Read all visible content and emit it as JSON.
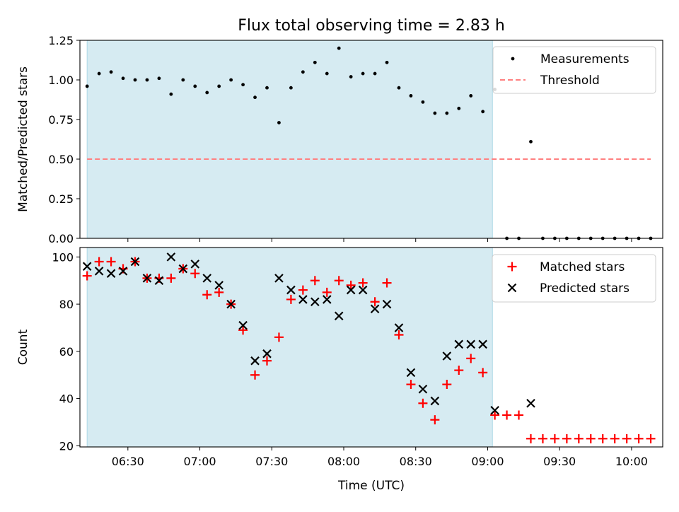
{
  "title": "Flux total observing time = 2.83 h",
  "xlabel": "Time (UTC)",
  "colors": {
    "band": "#add8e6",
    "threshold": "#ff8080",
    "matched": "#ff0000",
    "predicted": "#000000",
    "measure": "#000000"
  },
  "chart_data": [
    {
      "type": "scatter",
      "ylabel": "Matched/Predicted stars",
      "ylim": [
        0,
        1.25
      ],
      "yticks": [
        "0.00",
        "0.25",
        "0.50",
        "0.75",
        "1.00",
        "1.25"
      ],
      "xlim": [
        "06:10",
        "10:13"
      ],
      "xticks": [
        "06:30",
        "07:00",
        "07:30",
        "08:00",
        "08:30",
        "09:00",
        "09:30",
        "10:00"
      ],
      "shaded_span": [
        "06:13",
        "09:02"
      ],
      "legend_position": "top-right",
      "series": [
        {
          "name": "Measurements",
          "x": [
            "06:13",
            "06:18",
            "06:23",
            "06:28",
            "06:33",
            "06:38",
            "06:43",
            "06:48",
            "06:53",
            "06:58",
            "07:03",
            "07:08",
            "07:13",
            "07:18",
            "07:23",
            "07:28",
            "07:33",
            "07:38",
            "07:43",
            "07:48",
            "07:53",
            "07:58",
            "08:03",
            "08:08",
            "08:13",
            "08:18",
            "08:23",
            "08:28",
            "08:33",
            "08:38",
            "08:43",
            "08:48",
            "08:53",
            "08:58",
            "09:03",
            "09:08",
            "09:13",
            "09:18",
            "09:23",
            "09:28",
            "09:33",
            "09:38",
            "09:43",
            "09:48",
            "09:53",
            "09:58",
            "10:03",
            "10:08"
          ],
          "y": [
            0.96,
            1.04,
            1.05,
            1.01,
            1.0,
            1.0,
            1.01,
            0.91,
            1.0,
            0.96,
            0.92,
            0.96,
            1.0,
            0.97,
            0.89,
            0.95,
            0.73,
            0.95,
            1.05,
            1.11,
            1.04,
            1.2,
            1.02,
            1.04,
            1.04,
            1.11,
            0.95,
            0.9,
            0.86,
            0.79,
            0.79,
            0.82,
            0.9,
            0.8,
            0.94,
            0.0,
            0.0,
            0.61,
            0.0,
            0.0,
            0.0,
            0.0,
            0.0,
            0.0,
            0.0,
            0.0,
            0.0,
            0.0
          ]
        },
        {
          "name": "Threshold",
          "x": [
            "06:13",
            "10:08"
          ],
          "y": [
            0.5,
            0.5
          ]
        }
      ]
    },
    {
      "type": "scatter",
      "ylabel": "Count",
      "ylim": [
        19.5,
        104
      ],
      "yticks": [
        "20",
        "40",
        "60",
        "80",
        "100"
      ],
      "xlim": [
        "06:10",
        "10:13"
      ],
      "xticks": [
        "06:30",
        "07:00",
        "07:30",
        "08:00",
        "08:30",
        "09:00",
        "09:30",
        "10:00"
      ],
      "shaded_span": [
        "06:13",
        "09:02"
      ],
      "legend_position": "top-right",
      "series": [
        {
          "name": "Matched stars",
          "x": [
            "06:13",
            "06:18",
            "06:23",
            "06:28",
            "06:33",
            "06:38",
            "06:43",
            "06:48",
            "06:53",
            "06:58",
            "07:03",
            "07:08",
            "07:13",
            "07:18",
            "07:23",
            "07:28",
            "07:33",
            "07:38",
            "07:43",
            "07:48",
            "07:53",
            "07:58",
            "08:03",
            "08:08",
            "08:13",
            "08:18",
            "08:23",
            "08:28",
            "08:33",
            "08:38",
            "08:43",
            "08:48",
            "08:53",
            "08:58",
            "09:03",
            "09:08",
            "09:13",
            "09:18",
            "09:23",
            "09:28",
            "09:33",
            "09:38",
            "09:43",
            "09:48",
            "09:53",
            "09:58",
            "10:03",
            "10:08"
          ],
          "y": [
            92,
            98,
            98,
            95,
            98,
            91,
            91,
            91,
            95,
            93,
            84,
            85,
            80,
            69,
            50,
            56,
            66,
            82,
            86,
            90,
            85,
            90,
            88,
            89,
            81,
            89,
            67,
            46,
            38,
            31,
            46,
            52,
            57,
            51,
            33,
            33,
            33,
            23,
            23,
            23,
            23,
            23,
            23,
            23,
            23,
            23,
            23,
            23
          ]
        },
        {
          "name": "Predicted stars",
          "x": [
            "06:13",
            "06:18",
            "06:23",
            "06:28",
            "06:33",
            "06:38",
            "06:43",
            "06:48",
            "06:53",
            "06:58",
            "07:03",
            "07:08",
            "07:13",
            "07:18",
            "07:23",
            "07:28",
            "07:33",
            "07:38",
            "07:43",
            "07:48",
            "07:53",
            "07:58",
            "08:03",
            "08:08",
            "08:13",
            "08:18",
            "08:23",
            "08:28",
            "08:33",
            "08:38",
            "08:43",
            "08:48",
            "08:53",
            "08:58",
            "09:03",
            "09:18"
          ],
          "y": [
            96,
            94,
            93,
            94,
            98,
            91,
            90,
            100,
            95,
            97,
            91,
            88,
            80,
            71,
            56,
            59,
            91,
            86,
            82,
            81,
            82,
            75,
            86,
            86,
            78,
            80,
            70,
            51,
            44,
            39,
            58,
            63,
            63,
            63,
            35,
            38
          ]
        }
      ]
    }
  ]
}
